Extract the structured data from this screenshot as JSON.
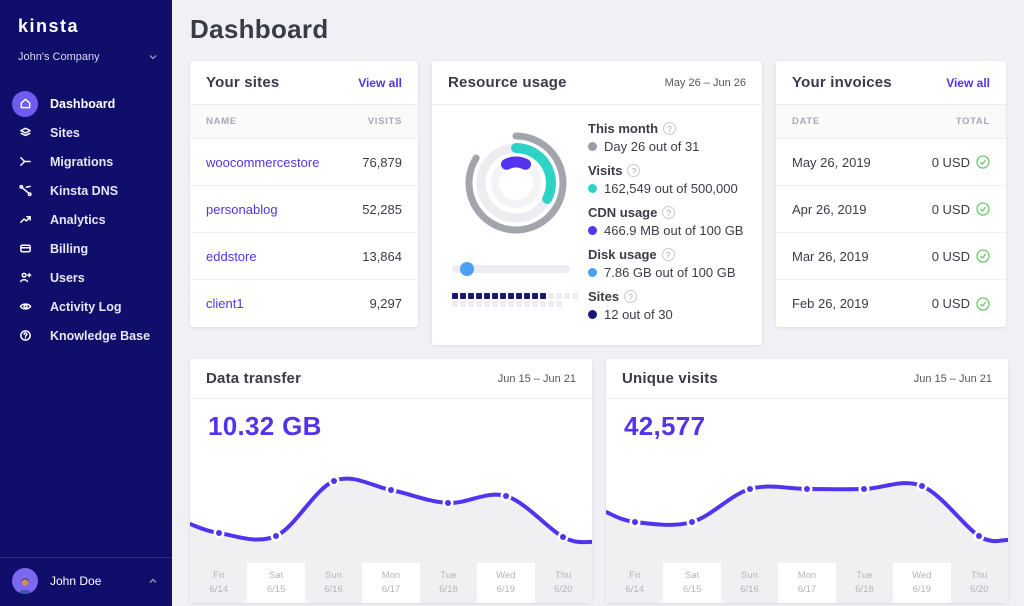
{
  "brand": {
    "logo": "kinsta"
  },
  "colors": {
    "accent": "#5333ed",
    "sidebar_bg": "#100e6b",
    "active_circle": "#6e5bf0",
    "teal": "#2fd3c6",
    "blue": "#4aa1f3",
    "navy": "#181774",
    "gray_ring": "#a4a4ac",
    "green_check": "#6cc96c",
    "chart_fill": "#f0f0f3"
  },
  "sidebar": {
    "company": "John's Company",
    "items": [
      {
        "label": "Dashboard",
        "active": true
      },
      {
        "label": "Sites"
      },
      {
        "label": "Migrations"
      },
      {
        "label": "Kinsta DNS"
      },
      {
        "label": "Analytics"
      },
      {
        "label": "Billing"
      },
      {
        "label": "Users"
      },
      {
        "label": "Activity Log"
      },
      {
        "label": "Knowledge Base"
      }
    ],
    "user": "John Doe"
  },
  "header": {
    "title": "Dashboard"
  },
  "sites_card": {
    "title": "Your sites",
    "link": "View all",
    "columns": [
      "Name",
      "Visits"
    ],
    "rows": [
      [
        "woocommercestore",
        "76,879"
      ],
      [
        "personablog",
        "52,285"
      ],
      [
        "eddstore",
        "13,864"
      ],
      [
        "client1",
        "9,297"
      ]
    ]
  },
  "resource_card": {
    "title": "Resource usage",
    "range_label": "May 26 – Jun 26",
    "legend": [
      {
        "label": "This month",
        "value": "Day 26 out of 31",
        "color": "#9b9ba4"
      },
      {
        "label": "Visits",
        "value": "162,549 out of 500,000",
        "color": "#2fd3c6"
      },
      {
        "label": "CDN usage",
        "value": "466.9 MB out of 100 GB",
        "color": "#5333ed"
      },
      {
        "label": "Disk usage",
        "value": "7.86 GB out of 100 GB",
        "color": "#4aa1f3"
      },
      {
        "label": "Sites",
        "value": "12 out of 30",
        "color": "#181774"
      }
    ],
    "rings": {
      "month_pct": 83.9,
      "visits_pct": 32.5,
      "cdn_sweep_deg": 54,
      "disk_pct": 7.9,
      "sites_filled": 12,
      "sites_total": 30
    }
  },
  "invoices_card": {
    "title": "Your invoices",
    "link": "View all",
    "columns": [
      "Date",
      "Total"
    ],
    "rows": [
      [
        "May 26, 2019",
        "0 USD"
      ],
      [
        "Apr 26, 2019",
        "0 USD"
      ],
      [
        "Mar 26, 2019",
        "0 USD"
      ],
      [
        "Feb 26, 2019",
        "0 USD"
      ]
    ]
  },
  "chart_data": [
    {
      "type": "line",
      "title": "Data transfer",
      "range_label": "Jun 15 – Jun 21",
      "total_label": "10.32 GB",
      "days": [
        [
          "Fri",
          "6/14"
        ],
        [
          "Sat",
          "6/15"
        ],
        [
          "Sun",
          "6/16"
        ],
        [
          "Mon",
          "6/17"
        ],
        [
          "Tue",
          "6/18"
        ],
        [
          "Wed",
          "6/19"
        ],
        [
          "Thu",
          "6/20"
        ]
      ],
      "relative_points": [
        0.28,
        0.2,
        0.18,
        0.64,
        0.57,
        0.46,
        0.52,
        0.17,
        0.13
      ],
      "line_color": "#5333ed",
      "fill_color": "#f0f0f3",
      "xlabel": "",
      "ylabel": "",
      "legend": "none",
      "grid": false
    },
    {
      "type": "line",
      "title": "Unique visits",
      "range_label": "Jun 15 – Jun 21",
      "total_label": "42,577",
      "days": [
        [
          "Fri",
          "6/14"
        ],
        [
          "Sat",
          "6/15"
        ],
        [
          "Sun",
          "6/16"
        ],
        [
          "Mon",
          "6/17"
        ],
        [
          "Tue",
          "6/18"
        ],
        [
          "Wed",
          "6/19"
        ],
        [
          "Thu",
          "6/20"
        ]
      ],
      "relative_points": [
        0.38,
        0.3,
        0.3,
        0.575,
        0.58,
        0.575,
        0.6,
        0.18,
        0.14
      ],
      "line_color": "#5333ed",
      "fill_color": "#f0f0f3",
      "xlabel": "",
      "ylabel": "",
      "legend": "none",
      "grid": false
    }
  ]
}
